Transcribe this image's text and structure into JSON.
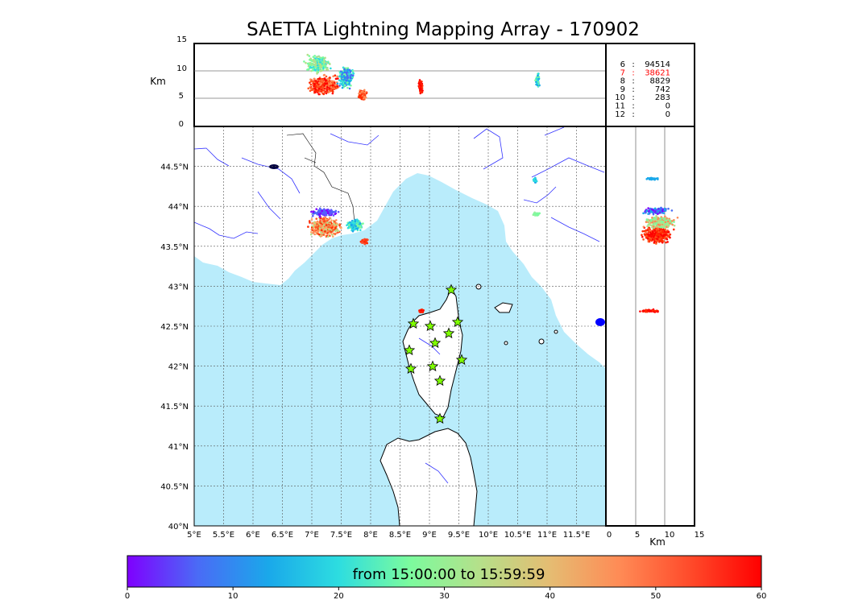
{
  "title": "SAETTA Lightning Mapping Array - 170902",
  "alt_panel": {
    "ylabel": "Km",
    "ticks": [
      "0",
      "5",
      "10",
      "15"
    ]
  },
  "side_panel": {
    "xlabel": "Km",
    "ticks": [
      "0",
      "5",
      "10",
      "15"
    ]
  },
  "stats": [
    {
      "label": "6",
      "value": "94514",
      "color": "#000000"
    },
    {
      "label": "7",
      "value": "38621",
      "color": "#ff0000"
    },
    {
      "label": "8",
      "value": "8829",
      "color": "#000000"
    },
    {
      "label": "9",
      "value": "742",
      "color": "#000000"
    },
    {
      "label": "10",
      "value": "283",
      "color": "#000000"
    },
    {
      "label": "11",
      "value": "0",
      "color": "#000000"
    },
    {
      "label": "12",
      "value": "0",
      "color": "#000000"
    }
  ],
  "map": {
    "lon_ticks": [
      "5°E",
      "5.5°E",
      "6°E",
      "6.5°E",
      "7°E",
      "7.5°E",
      "8°E",
      "8.5°E",
      "9°E",
      "9.5°E",
      "10°E",
      "10.5°E",
      "11°E",
      "11.5°E"
    ],
    "lat_ticks": [
      "40°N",
      "40.5°N",
      "41°N",
      "41.5°N",
      "42°N",
      "42.5°N",
      "43°N",
      "43.5°N",
      "44°N",
      "44.5°N"
    ],
    "sea_color": "#b9ecfb",
    "station_color": "#7fff00"
  },
  "colorbar": {
    "label": "from 15:00:00 to 15:59:59",
    "ticks": [
      "0",
      "10",
      "20",
      "30",
      "40",
      "50",
      "60"
    ],
    "stops": [
      "#7f00ff",
      "#4a6bf6",
      "#1aa8ea",
      "#2ddde0",
      "#7bfb9e",
      "#b5e08a",
      "#e5bc72",
      "#ff8a55",
      "#ff4a2a",
      "#ff0000"
    ]
  }
}
